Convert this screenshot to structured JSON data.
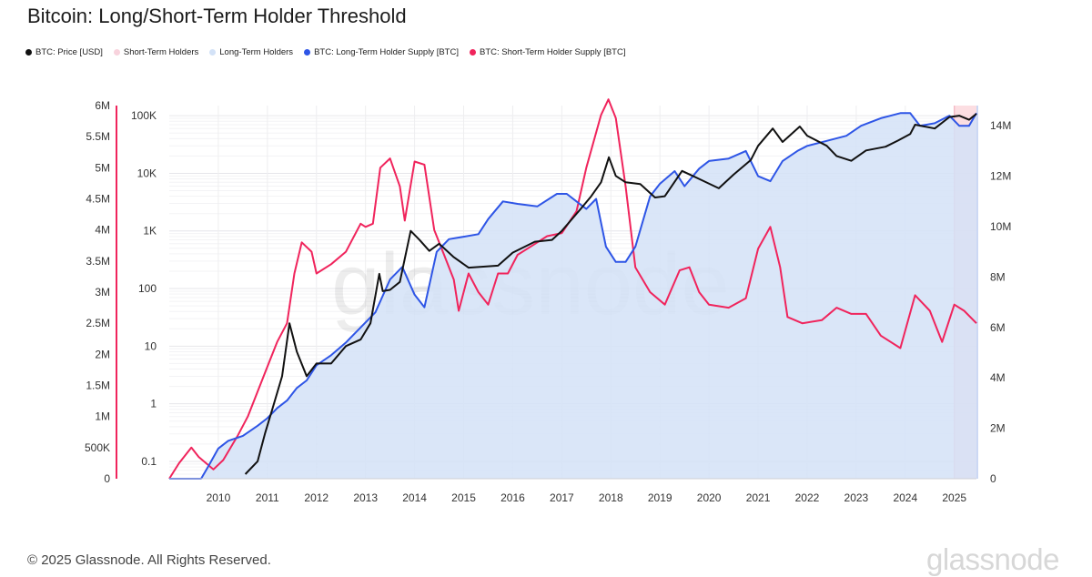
{
  "title": "Bitcoin: Long/Short-Term Holder Threshold",
  "legend": [
    {
      "label": "BTC: Price [USD]",
      "color": "#111111"
    },
    {
      "label": "Short-Term Holders",
      "color": "#f8d3dd"
    },
    {
      "label": "Long-Term Holders",
      "color": "#d3e2f7"
    },
    {
      "label": "BTC: Long-Term Holder Supply [BTC]",
      "color": "#2e55e6"
    },
    {
      "label": "BTC: Short-Term Holder Supply [BTC]",
      "color": "#f0245c"
    }
  ],
  "footer": "© 2025 Glassnode. All Rights Reserved.",
  "brand": "glassnode",
  "watermark": "glassnode",
  "chart_data": {
    "type": "line",
    "x_ticks": [
      "2010",
      "2011",
      "2012",
      "2013",
      "2014",
      "2015",
      "2016",
      "2017",
      "2018",
      "2019",
      "2020",
      "2021",
      "2022",
      "2023",
      "2024",
      "2025"
    ],
    "x_range": [
      2009.0,
      2025.45
    ],
    "y_left_outer": {
      "ticks": [
        "0",
        "500K",
        "1M",
        "1.5M",
        "2M",
        "2.5M",
        "3M",
        "3.5M",
        "4M",
        "4.5M",
        "5M",
        "5.5M",
        "6M"
      ],
      "range": [
        0,
        6000000
      ]
    },
    "y_left_log": {
      "ticks": [
        "0.1",
        "1",
        "10",
        "100",
        "1K",
        "10K",
        "100K"
      ],
      "scale": "log",
      "range": [
        0.05,
        150000
      ]
    },
    "y_right": {
      "ticks": [
        "0",
        "2M",
        "4M",
        "6M",
        "8M",
        "10M",
        "12M",
        "14M"
      ],
      "range": [
        0,
        14800000
      ]
    },
    "grid": true,
    "shaded_region_start": 2025.0,
    "series": [
      {
        "name": "BTC: Price [USD]",
        "color": "#111111",
        "axis": "log",
        "points": [
          [
            2010.55,
            0.06
          ],
          [
            2010.8,
            0.1
          ],
          [
            2010.95,
            0.3
          ],
          [
            2011.1,
            0.8
          ],
          [
            2011.3,
            3
          ],
          [
            2011.45,
            25
          ],
          [
            2011.6,
            8
          ],
          [
            2011.8,
            3
          ],
          [
            2012.0,
            5
          ],
          [
            2012.3,
            5
          ],
          [
            2012.6,
            10
          ],
          [
            2012.9,
            13
          ],
          [
            2013.1,
            25
          ],
          [
            2013.28,
            180
          ],
          [
            2013.35,
            90
          ],
          [
            2013.5,
            95
          ],
          [
            2013.7,
            130
          ],
          [
            2013.92,
            1000
          ],
          [
            2014.1,
            700
          ],
          [
            2014.3,
            450
          ],
          [
            2014.5,
            600
          ],
          [
            2014.8,
            350
          ],
          [
            2015.1,
            230
          ],
          [
            2015.4,
            240
          ],
          [
            2015.7,
            250
          ],
          [
            2016.0,
            420
          ],
          [
            2016.45,
            650
          ],
          [
            2016.8,
            700
          ],
          [
            2017.0,
            1000
          ],
          [
            2017.4,
            2500
          ],
          [
            2017.6,
            4000
          ],
          [
            2017.8,
            7000
          ],
          [
            2017.96,
            19000
          ],
          [
            2018.1,
            9000
          ],
          [
            2018.3,
            7000
          ],
          [
            2018.6,
            6500
          ],
          [
            2018.9,
            3800
          ],
          [
            2019.1,
            4000
          ],
          [
            2019.45,
            11000
          ],
          [
            2019.8,
            8000
          ],
          [
            2020.2,
            5500
          ],
          [
            2020.5,
            9500
          ],
          [
            2020.85,
            17000
          ],
          [
            2021.0,
            30000
          ],
          [
            2021.3,
            60000
          ],
          [
            2021.5,
            35000
          ],
          [
            2021.85,
            65000
          ],
          [
            2022.0,
            45000
          ],
          [
            2022.4,
            30000
          ],
          [
            2022.6,
            20000
          ],
          [
            2022.9,
            16500
          ],
          [
            2023.2,
            25000
          ],
          [
            2023.6,
            29000
          ],
          [
            2023.85,
            37000
          ],
          [
            2024.1,
            48000
          ],
          [
            2024.2,
            70000
          ],
          [
            2024.6,
            60000
          ],
          [
            2024.9,
            95000
          ],
          [
            2025.1,
            100000
          ],
          [
            2025.3,
            85000
          ],
          [
            2025.45,
            108000
          ]
        ]
      },
      {
        "name": "BTC: Long-Term Holder Supply [BTC]",
        "color": "#2e55e6",
        "axis": "right",
        "points": [
          [
            2009.0,
            0
          ],
          [
            2009.65,
            0
          ],
          [
            2009.8,
            0.5
          ],
          [
            2010.0,
            1.2
          ],
          [
            2010.2,
            1.5
          ],
          [
            2010.5,
            1.7
          ],
          [
            2010.8,
            2.1
          ],
          [
            2011.0,
            2.4
          ],
          [
            2011.2,
            2.8
          ],
          [
            2011.4,
            3.1
          ],
          [
            2011.6,
            3.6
          ],
          [
            2011.8,
            3.9
          ],
          [
            2012.0,
            4.5
          ],
          [
            2012.3,
            4.9
          ],
          [
            2012.6,
            5.4
          ],
          [
            2012.9,
            6.0
          ],
          [
            2013.2,
            6.6
          ],
          [
            2013.5,
            7.9
          ],
          [
            2013.75,
            8.4
          ],
          [
            2014.0,
            7.3
          ],
          [
            2014.2,
            6.8
          ],
          [
            2014.45,
            9.0
          ],
          [
            2014.7,
            9.5
          ],
          [
            2015.0,
            9.6
          ],
          [
            2015.3,
            9.7
          ],
          [
            2015.5,
            10.3
          ],
          [
            2015.8,
            11.0
          ],
          [
            2016.1,
            10.9
          ],
          [
            2016.5,
            10.8
          ],
          [
            2016.9,
            11.3
          ],
          [
            2017.1,
            11.3
          ],
          [
            2017.3,
            11.0
          ],
          [
            2017.5,
            10.7
          ],
          [
            2017.7,
            11.1
          ],
          [
            2017.9,
            9.2
          ],
          [
            2018.1,
            8.6
          ],
          [
            2018.3,
            8.6
          ],
          [
            2018.5,
            9.2
          ],
          [
            2018.8,
            11.2
          ],
          [
            2019.0,
            11.7
          ],
          [
            2019.3,
            12.2
          ],
          [
            2019.5,
            11.6
          ],
          [
            2019.8,
            12.3
          ],
          [
            2020.0,
            12.6
          ],
          [
            2020.4,
            12.7
          ],
          [
            2020.75,
            13.0
          ],
          [
            2021.0,
            12.0
          ],
          [
            2021.25,
            11.8
          ],
          [
            2021.5,
            12.6
          ],
          [
            2021.8,
            13.0
          ],
          [
            2022.0,
            13.2
          ],
          [
            2022.4,
            13.4
          ],
          [
            2022.8,
            13.6
          ],
          [
            2023.1,
            14.0
          ],
          [
            2023.5,
            14.3
          ],
          [
            2023.9,
            14.5
          ],
          [
            2024.1,
            14.5
          ],
          [
            2024.3,
            14.0
          ],
          [
            2024.6,
            14.1
          ],
          [
            2024.9,
            14.4
          ],
          [
            2025.1,
            14.0
          ],
          [
            2025.3,
            14.0
          ],
          [
            2025.45,
            14.5
          ]
        ]
      },
      {
        "name": "BTC: Short-Term Holder Supply [BTC]",
        "color": "#f0245c",
        "axis": "left_outer",
        "points": [
          [
            2009.0,
            0
          ],
          [
            2009.2,
            250000
          ],
          [
            2009.45,
            500000
          ],
          [
            2009.6,
            350000
          ],
          [
            2009.9,
            150000
          ],
          [
            2010.1,
            300000
          ],
          [
            2010.4,
            700000
          ],
          [
            2010.6,
            1000000
          ],
          [
            2010.8,
            1400000
          ],
          [
            2011.0,
            1800000
          ],
          [
            2011.2,
            2200000
          ],
          [
            2011.4,
            2500000
          ],
          [
            2011.55,
            3300000
          ],
          [
            2011.7,
            3800000
          ],
          [
            2011.9,
            3650000
          ],
          [
            2012.0,
            3300000
          ],
          [
            2012.3,
            3450000
          ],
          [
            2012.6,
            3650000
          ],
          [
            2012.9,
            4100000
          ],
          [
            2013.0,
            4050000
          ],
          [
            2013.15,
            4100000
          ],
          [
            2013.3,
            5000000
          ],
          [
            2013.5,
            5150000
          ],
          [
            2013.7,
            4700000
          ],
          [
            2013.8,
            4150000
          ],
          [
            2014.0,
            5100000
          ],
          [
            2014.2,
            5050000
          ],
          [
            2014.4,
            4000000
          ],
          [
            2014.6,
            3600000
          ],
          [
            2014.8,
            3200000
          ],
          [
            2014.9,
            2700000
          ],
          [
            2015.1,
            3300000
          ],
          [
            2015.3,
            3000000
          ],
          [
            2015.5,
            2800000
          ],
          [
            2015.7,
            3300000
          ],
          [
            2015.9,
            3300000
          ],
          [
            2016.1,
            3600000
          ],
          [
            2016.4,
            3750000
          ],
          [
            2016.7,
            3900000
          ],
          [
            2017.0,
            3950000
          ],
          [
            2017.3,
            4300000
          ],
          [
            2017.5,
            5000000
          ],
          [
            2017.8,
            5850000
          ],
          [
            2017.95,
            6100000
          ],
          [
            2018.1,
            5800000
          ],
          [
            2018.3,
            4700000
          ],
          [
            2018.5,
            3400000
          ],
          [
            2018.8,
            3000000
          ],
          [
            2019.1,
            2800000
          ],
          [
            2019.4,
            3350000
          ],
          [
            2019.6,
            3400000
          ],
          [
            2019.8,
            3000000
          ],
          [
            2020.0,
            2800000
          ],
          [
            2020.4,
            2750000
          ],
          [
            2020.75,
            2900000
          ],
          [
            2021.0,
            3700000
          ],
          [
            2021.25,
            4050000
          ],
          [
            2021.45,
            3400000
          ],
          [
            2021.6,
            2600000
          ],
          [
            2021.9,
            2500000
          ],
          [
            2022.3,
            2550000
          ],
          [
            2022.6,
            2750000
          ],
          [
            2022.9,
            2650000
          ],
          [
            2023.2,
            2650000
          ],
          [
            2023.5,
            2300000
          ],
          [
            2023.9,
            2100000
          ],
          [
            2024.2,
            2950000
          ],
          [
            2024.5,
            2700000
          ],
          [
            2024.75,
            2200000
          ],
          [
            2025.0,
            2800000
          ],
          [
            2025.2,
            2700000
          ],
          [
            2025.45,
            2500000
          ]
        ]
      }
    ]
  }
}
